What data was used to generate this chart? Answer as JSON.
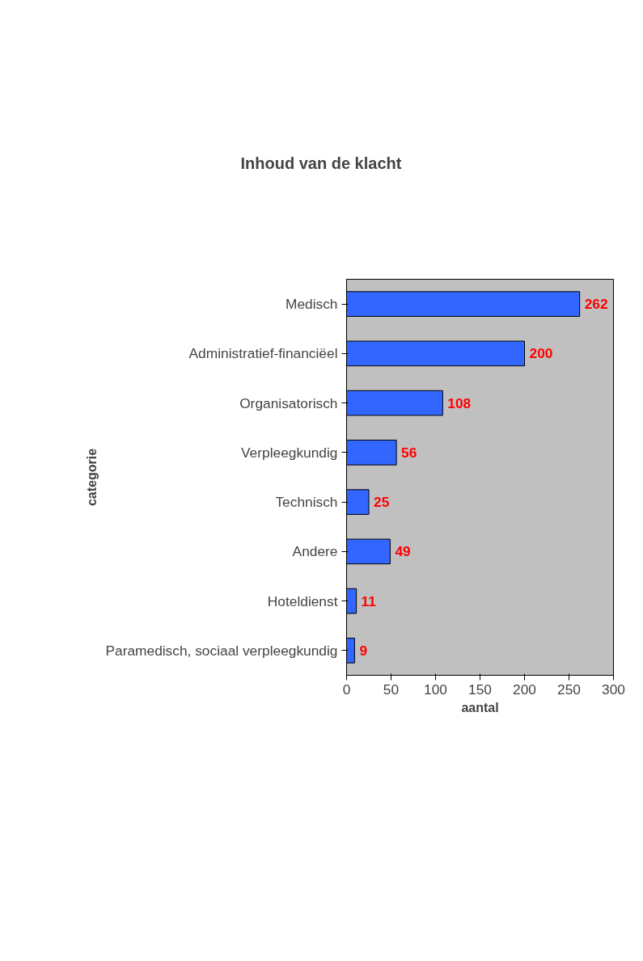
{
  "chart_data": {
    "type": "bar",
    "orientation": "horizontal",
    "title": "Inhoud van de klacht",
    "xlabel": "aantal",
    "ylabel": "categorie",
    "categories": [
      "Medisch",
      "Administratief-financiëel",
      "Organisatorisch",
      "Verpleegkundig",
      "Technisch",
      "Andere",
      "Hoteldienst",
      "Paramedisch, sociaal verpleegkundig"
    ],
    "values": [
      262,
      200,
      108,
      56,
      25,
      49,
      11,
      9
    ],
    "color": "#3366ff",
    "xlim": [
      0,
      300
    ],
    "xticks": [
      0,
      50,
      100,
      150,
      200,
      250,
      300
    ],
    "data_labels": true,
    "grid": false
  }
}
